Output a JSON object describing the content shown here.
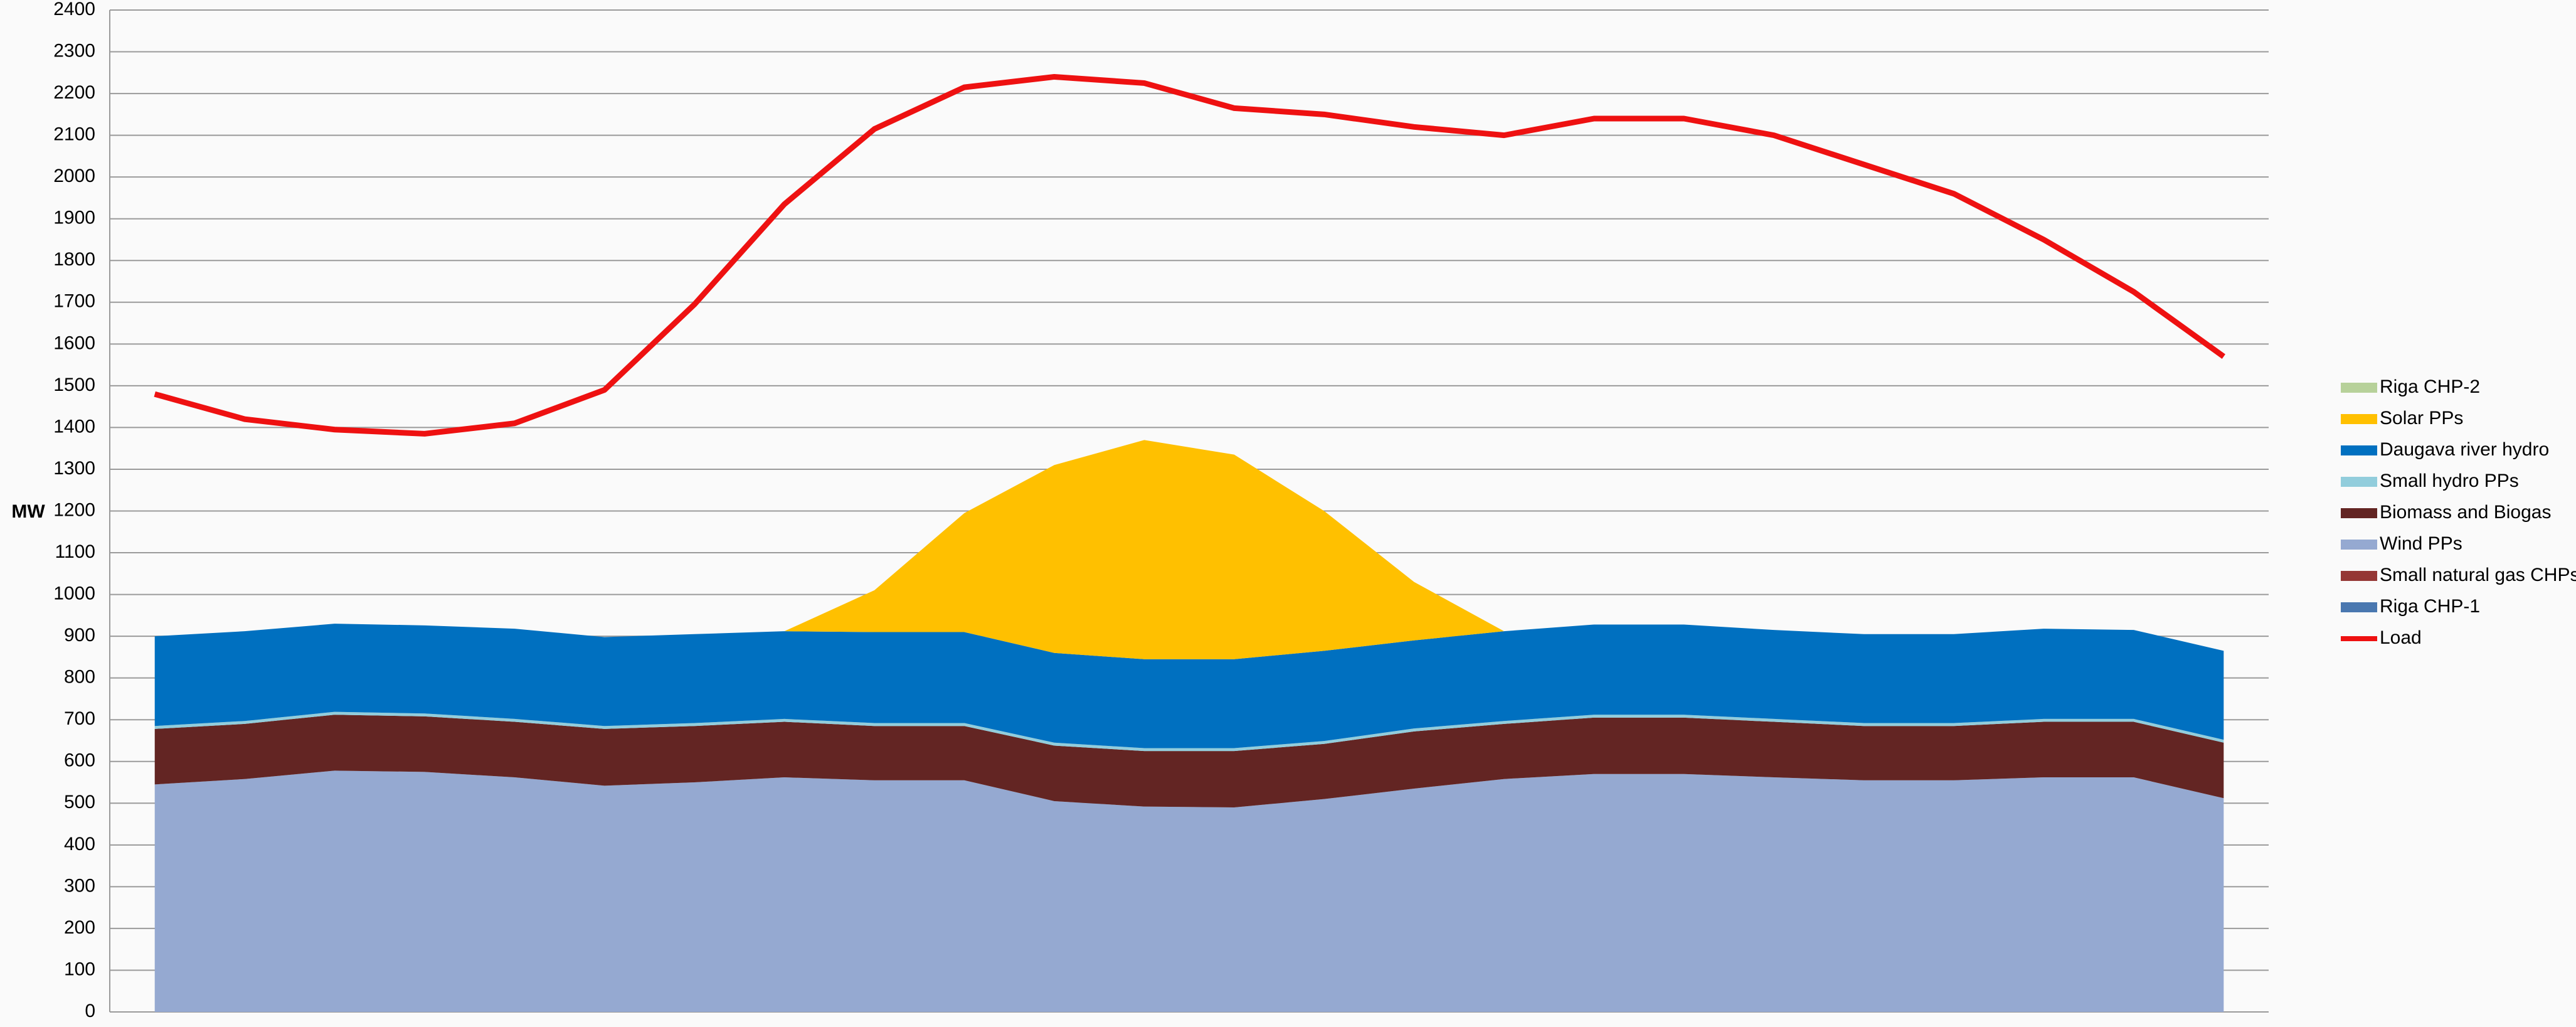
{
  "chart_data": {
    "type": "area",
    "stacked": true,
    "ylabel": "MW",
    "categories": [
      null,
      null,
      null,
      null,
      null,
      null,
      null,
      null,
      null,
      null,
      null,
      null,
      null,
      null,
      null,
      null,
      null,
      null,
      null,
      null,
      null,
      null,
      null,
      null
    ],
    "ylim": [
      0,
      2400
    ],
    "yticks": [
      0,
      100,
      200,
      300,
      400,
      500,
      600,
      700,
      800,
      900,
      1000,
      1100,
      1200,
      1300,
      1400,
      1500,
      1600,
      1700,
      1800,
      1900,
      2000,
      2100,
      2200,
      2300,
      2400
    ],
    "grid": true,
    "legend": "right",
    "series": [
      {
        "name": "Riga CHP-2",
        "color": "#b7d19a",
        "values": [
          0,
          0,
          0,
          0,
          0,
          0,
          0,
          0,
          0,
          0,
          0,
          0,
          0,
          0,
          0,
          0,
          0,
          0,
          0,
          0,
          0,
          0,
          0,
          0
        ]
      },
      {
        "name": "Solar PPs",
        "color": "#ffc000",
        "values": [
          0,
          0,
          0,
          0,
          0,
          0,
          0,
          0,
          100,
          285,
          450,
          525,
          490,
          335,
          140,
          0,
          0,
          0,
          0,
          0,
          0,
          0,
          0,
          0
        ]
      },
      {
        "name": "Daugava river hydro",
        "color": "#0070c0",
        "values": [
          215,
          215,
          211,
          211,
          216,
          213,
          213,
          210,
          218,
          218,
          215,
          213,
          213,
          216,
          211,
          215,
          216,
          216,
          213,
          213,
          213,
          216,
          213,
          213
        ]
      },
      {
        "name": "Small hydro PPs",
        "color": "#92cddc",
        "values": [
          7,
          7,
          7,
          7,
          7,
          7,
          7,
          7,
          7,
          7,
          7,
          7,
          7,
          7,
          7,
          7,
          7,
          7,
          7,
          7,
          7,
          7,
          7,
          7
        ]
      },
      {
        "name": "Biomass and Biogas",
        "color": "#632523",
        "values": [
          133,
          132,
          134,
          133,
          133,
          136,
          135,
          133,
          130,
          130,
          133,
          133,
          135,
          132,
          137,
          132,
          135,
          135,
          133,
          130,
          130,
          133,
          133,
          133
        ]
      },
      {
        "name": "Wind PPs",
        "color": "#95a9d1",
        "values": [
          545,
          558,
          578,
          575,
          562,
          542,
          550,
          562,
          555,
          555,
          505,
          492,
          490,
          510,
          535,
          558,
          570,
          570,
          562,
          555,
          555,
          562,
          562,
          512
        ]
      },
      {
        "name": "Small natural gas CHPs",
        "color": "#953735",
        "values": [
          0,
          0,
          0,
          0,
          0,
          0,
          0,
          0,
          0,
          0,
          0,
          0,
          0,
          0,
          0,
          0,
          0,
          0,
          0,
          0,
          0,
          0,
          0,
          0
        ]
      },
      {
        "name": "Riga CHP-1",
        "color": "#4a78b0",
        "values": [
          0,
          0,
          0,
          0,
          0,
          0,
          0,
          0,
          0,
          0,
          0,
          0,
          0,
          0,
          0,
          0,
          0,
          0,
          0,
          0,
          0,
          0,
          0,
          0
        ]
      },
      {
        "name": "Load",
        "type": "line",
        "color": "#ee1111",
        "values": [
          1480,
          1420,
          1395,
          1385,
          1410,
          1490,
          1695,
          1935,
          2115,
          2215,
          2240,
          2225,
          2165,
          2150,
          2120,
          2100,
          2140,
          2140,
          2100,
          2030,
          1960,
          1850,
          1725,
          1570
        ]
      }
    ]
  }
}
